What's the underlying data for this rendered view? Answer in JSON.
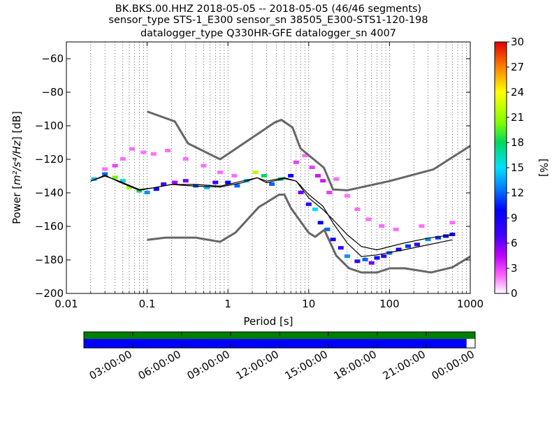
{
  "title": {
    "line1": "BK.BKS.00.HHZ   2018-05-05 -- 2018-05-05  (46/46 segments)",
    "line2": "sensor_type STS-1_E300 sensor_sn 38505_E300-STS1-120-198",
    "line3": "datalogger_type Q330HR-GFE datalogger_sn 4007"
  },
  "chart_data": [
    {
      "type": "heatmap",
      "title": "",
      "xlabel": "Period [s]",
      "ylabel_prefix": "Power [",
      "ylabel_math": "m²/s⁴/Hz",
      "ylabel_suffix": "] [dB]",
      "x_scale": "log",
      "xlim": [
        0.01,
        1000
      ],
      "ylim": [
        -200,
        -50
      ],
      "x_ticks": [
        {
          "value": 0.01,
          "label": "0.01"
        },
        {
          "value": 0.1,
          "label": "0.1"
        },
        {
          "value": 1,
          "label": "1"
        },
        {
          "value": 10,
          "label": "10"
        },
        {
          "value": 100,
          "label": "100"
        },
        {
          "value": 1000,
          "label": "1000"
        }
      ],
      "y_ticks": [
        {
          "value": -60,
          "label": "−60"
        },
        {
          "value": -80,
          "label": "−80"
        },
        {
          "value": -100,
          "label": "−100"
        },
        {
          "value": -120,
          "label": "−120"
        },
        {
          "value": -140,
          "label": "−140"
        },
        {
          "value": -160,
          "label": "−160"
        },
        {
          "value": -180,
          "label": "−180"
        },
        {
          "value": -200,
          "label": "−200"
        }
      ],
      "grid": "dotted vertical at log minors",
      "colorbar": {
        "label": "[%]",
        "range": [
          0,
          30
        ],
        "ticks": [
          "0",
          "3",
          "6",
          "9",
          "12",
          "15",
          "18",
          "21",
          "24",
          "27",
          "30"
        ]
      },
      "noise_models": {
        "high_noise_model": [
          [
            0.1,
            -91.5
          ],
          [
            0.22,
            -97.4
          ],
          [
            0.32,
            -110.5
          ],
          [
            0.8,
            -120
          ],
          [
            3.8,
            -98
          ],
          [
            4.6,
            -96.5
          ],
          [
            6.3,
            -101
          ],
          [
            7.9,
            -113.5
          ],
          [
            15.4,
            -125
          ],
          [
            20,
            -138
          ],
          [
            30,
            -138.5
          ],
          [
            100,
            -133
          ],
          [
            350,
            -126
          ],
          [
            1000,
            -112
          ]
        ],
        "low_noise_model": [
          [
            0.1,
            -168
          ],
          [
            0.17,
            -166.7
          ],
          [
            0.4,
            -166.7
          ],
          [
            0.8,
            -169.2
          ],
          [
            1.24,
            -163.7
          ],
          [
            2.4,
            -148.6
          ],
          [
            4.3,
            -141.1
          ],
          [
            5,
            -141.1
          ],
          [
            6,
            -149
          ],
          [
            10,
            -163.8
          ],
          [
            12,
            -166.2
          ],
          [
            15.6,
            -162.1
          ],
          [
            21.9,
            -177.5
          ],
          [
            31.6,
            -185
          ],
          [
            45,
            -187.5
          ],
          [
            70,
            -187.5
          ],
          [
            101,
            -185
          ],
          [
            154,
            -185
          ],
          [
            328,
            -187.5
          ],
          [
            600,
            -184.4
          ],
          [
            1000,
            -178
          ]
        ]
      },
      "mean_curve": [
        [
          0.02,
          -133
        ],
        [
          0.03,
          -130
        ],
        [
          0.045,
          -133
        ],
        [
          0.08,
          -138
        ],
        [
          0.12,
          -137
        ],
        [
          0.2,
          -135
        ],
        [
          0.4,
          -135
        ],
        [
          0.8,
          -136
        ],
        [
          1.5,
          -133
        ],
        [
          2.3,
          -131
        ],
        [
          3,
          -133
        ],
        [
          5,
          -131
        ],
        [
          7,
          -133
        ],
        [
          10,
          -143
        ],
        [
          15,
          -150
        ],
        [
          20,
          -156
        ],
        [
          30,
          -165
        ],
        [
          45,
          -172
        ],
        [
          70,
          -174
        ],
        [
          150,
          -170
        ],
        [
          300,
          -167
        ],
        [
          600,
          -165
        ]
      ],
      "mode_curve": [
        [
          0.02,
          -133
        ],
        [
          0.03,
          -129.5
        ],
        [
          0.045,
          -133.5
        ],
        [
          0.08,
          -138.5
        ],
        [
          0.12,
          -137
        ],
        [
          0.2,
          -135
        ],
        [
          0.4,
          -136
        ],
        [
          0.8,
          -136.5
        ],
        [
          1.5,
          -134
        ],
        [
          2.3,
          -131
        ],
        [
          3,
          -134
        ],
        [
          5,
          -131.5
        ],
        [
          7,
          -133
        ],
        [
          10,
          -141
        ],
        [
          15,
          -148
        ],
        [
          20,
          -158
        ],
        [
          30,
          -170
        ],
        [
          45,
          -178
        ],
        [
          70,
          -177
        ],
        [
          150,
          -174
        ],
        [
          300,
          -171
        ],
        [
          600,
          -168
        ]
      ],
      "percentile_distribution": [
        [
          0.03,
          -126,
          2
        ],
        [
          0.04,
          -124,
          3
        ],
        [
          0.05,
          -120,
          2
        ],
        [
          0.065,
          -114,
          2
        ],
        [
          0.09,
          -116,
          2
        ],
        [
          0.12,
          -117,
          2
        ],
        [
          0.18,
          -115,
          2
        ],
        [
          0.3,
          -120,
          2
        ],
        [
          0.5,
          -124,
          2
        ],
        [
          0.8,
          -128,
          2
        ],
        [
          1.2,
          -130,
          2
        ],
        [
          0.022,
          -132,
          14
        ],
        [
          0.03,
          -129,
          12
        ],
        [
          0.04,
          -131,
          20
        ],
        [
          0.05,
          -133,
          16
        ],
        [
          0.06,
          -137,
          21
        ],
        [
          0.08,
          -139,
          18
        ],
        [
          0.1,
          -140,
          13
        ],
        [
          0.13,
          -138,
          10
        ],
        [
          0.16,
          -135,
          7
        ],
        [
          0.22,
          -134,
          5
        ],
        [
          0.3,
          -133,
          6
        ],
        [
          0.4,
          -136,
          12
        ],
        [
          0.55,
          -137,
          14
        ],
        [
          0.7,
          -134,
          8
        ],
        [
          1,
          -134,
          10
        ],
        [
          1.3,
          -136,
          12
        ],
        [
          1.7,
          -133,
          15
        ],
        [
          2.2,
          -128,
          22
        ],
        [
          2.8,
          -130,
          18
        ],
        [
          3.5,
          -135,
          12
        ],
        [
          4.5,
          -132,
          17
        ],
        [
          6,
          -130,
          9
        ],
        [
          7,
          -122,
          3
        ],
        [
          9,
          -118,
          2
        ],
        [
          11,
          -125,
          3
        ],
        [
          13,
          -130,
          4
        ],
        [
          15,
          -133,
          4
        ],
        [
          18,
          -140,
          3
        ],
        [
          22,
          -132,
          2
        ],
        [
          30,
          -142,
          2
        ],
        [
          40,
          -150,
          2
        ],
        [
          55,
          -156,
          2
        ],
        [
          80,
          -160,
          2
        ],
        [
          120,
          -162,
          2
        ],
        [
          250,
          -160,
          2
        ],
        [
          600,
          -158,
          2
        ],
        [
          8,
          -140,
          6
        ],
        [
          10,
          -147,
          8
        ],
        [
          12,
          -150,
          15
        ],
        [
          14,
          -158,
          10
        ],
        [
          17,
          -162,
          12
        ],
        [
          20,
          -168,
          9
        ],
        [
          25,
          -173,
          8
        ],
        [
          30,
          -178,
          13
        ],
        [
          40,
          -181,
          8
        ],
        [
          50,
          -180,
          12
        ],
        [
          60,
          -182,
          6
        ],
        [
          70,
          -179,
          10
        ],
        [
          85,
          -178,
          8
        ],
        [
          100,
          -176,
          12
        ],
        [
          130,
          -174,
          9
        ],
        [
          170,
          -172,
          11
        ],
        [
          220,
          -171,
          8
        ],
        [
          300,
          -168,
          13
        ],
        [
          400,
          -167,
          11
        ],
        [
          500,
          -166,
          9
        ],
        [
          600,
          -165,
          10
        ]
      ]
    },
    {
      "type": "timeline",
      "title": "",
      "xlabel": "",
      "x_ticks": [
        "03:00:00",
        "06:00:00",
        "09:00:00",
        "12:00:00",
        "15:00:00",
        "18:00:00",
        "21:00:00",
        "00:00:00"
      ],
      "coverage": {
        "data_available_fraction": 1.0,
        "segments_used_fraction": 0.978,
        "colors": {
          "data": "#008000",
          "used": "#0000ff",
          "unused": "#ffffff"
        }
      }
    }
  ]
}
